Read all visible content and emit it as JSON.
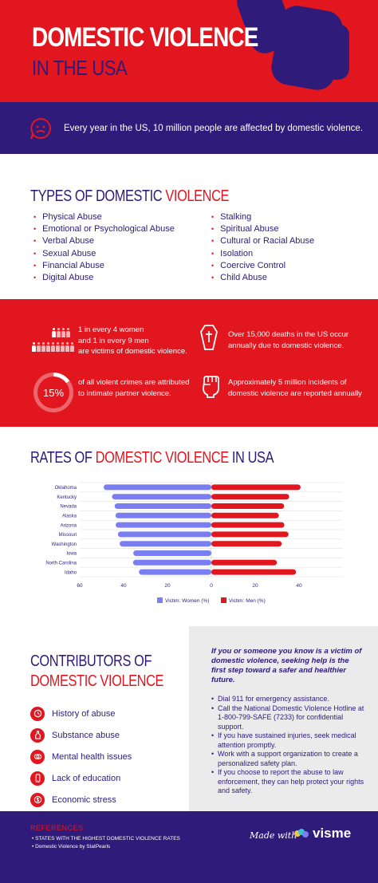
{
  "header": {
    "title_line1": "DOMESTIC VIOLENCE",
    "title_line2": "IN THE USA",
    "banner_text": "Every year in the US, 10 million people are affected by domestic violence.",
    "sad_icon": "sad-face-chat-icon"
  },
  "types": {
    "heading_part1": "TYPES OF DOMESTIC ",
    "heading_part2": "VIOLENCE",
    "left_items": [
      "Physical Abuse",
      "Emotional or Psychological Abuse",
      "Verbal Abuse",
      "Sexual Abuse",
      "Financial Abuse",
      "Digital Abuse"
    ],
    "right_items": [
      "Stalking",
      "Spiritual Abuse",
      "Cultural or Racial Abuse",
      "Isolation",
      "Coercive Control",
      "Child Abuse"
    ]
  },
  "stats": {
    "women_men": "1 in every 4 women\nand 1 in every 9 men\nare victims of domestic violence.",
    "deaths": "Over 15,000 deaths in the US occur\nannually due to domestic violence.",
    "percent_value": "15%",
    "percent_fraction": 0.15,
    "percent_text": "of all violent crimes are attributed\nto intimate partner violence.",
    "incidents": "Approximately 5 million incidents of\ndomestic violence are reported annually"
  },
  "rates": {
    "heading_part1": "RATES OF ",
    "heading_part2": "DOMESTIC VIOLENCE",
    "heading_part3": " IN USA"
  },
  "chart_data": {
    "type": "bar",
    "orientation": "horizontal-diverging",
    "categories": [
      "Oklahoma",
      "Kentucky",
      "Nevada",
      "Alaska",
      "Arizona",
      "Missouri",
      "Washington",
      "Iowa",
      "North Carolina",
      "Idaho"
    ],
    "series": [
      {
        "name": "Victim: Women (%)",
        "color": "#7b7ef0",
        "values": [
          49.1,
          45.3,
          44.1,
          43.7,
          43.6,
          42.6,
          41.8,
          35.6,
          35.7,
          33.0
        ]
      },
      {
        "name": "Victim: Men (%)",
        "color": "#e2161f",
        "values": [
          40.7,
          35.5,
          33.2,
          30.8,
          33.3,
          35.2,
          32.1,
          0,
          29.9,
          38.6
        ]
      }
    ],
    "xticks": [
      "60",
      "40",
      "20",
      "0",
      "20",
      "40"
    ],
    "xlim": [
      -60,
      60
    ],
    "grid": true,
    "legend": "bottom-center"
  },
  "contributors": {
    "heading_line1": "CONTRIBUTORS OF",
    "heading_line2": "DOMESTIC VIOLENCE",
    "items": [
      {
        "label": "History of abuse",
        "icon": "clock-icon"
      },
      {
        "label": "Substance abuse",
        "icon": "bottle-icon"
      },
      {
        "label": "Mental health issues",
        "icon": "brain-icon"
      },
      {
        "label": "Lack of education",
        "icon": "phone-icon"
      },
      {
        "label": "Economic stress",
        "icon": "dollar-icon"
      }
    ]
  },
  "help": {
    "lead": "If you or someone you know is a victim of domestic violence, seeking help is the first step toward a safer and healthier future.",
    "items": [
      "Dial 911 for emergency assistance.",
      "Call the National Domestic Violence Hotline at 1-800-799-SAFE (7233) for confidential support.",
      "If you have sustained injuries, seek medical attention promptly.",
      "Work with a support organization to create a personalized safety plan.",
      "If you choose to report the abuse to law enforcement, they can help protect your rights and safety."
    ]
  },
  "footer": {
    "references_heading": "REFERENCES",
    "references": [
      "STATES WITH THE HIGHEST DOMESTIC VIOLENCE RATES",
      "Domestic Violence by StatPearls"
    ],
    "made_with": "Made with",
    "brand": "visme"
  },
  "colors": {
    "red": "#e2161f",
    "navy": "#2e1b7a",
    "women": "#7b7ef0",
    "light": "#ebebeb"
  }
}
